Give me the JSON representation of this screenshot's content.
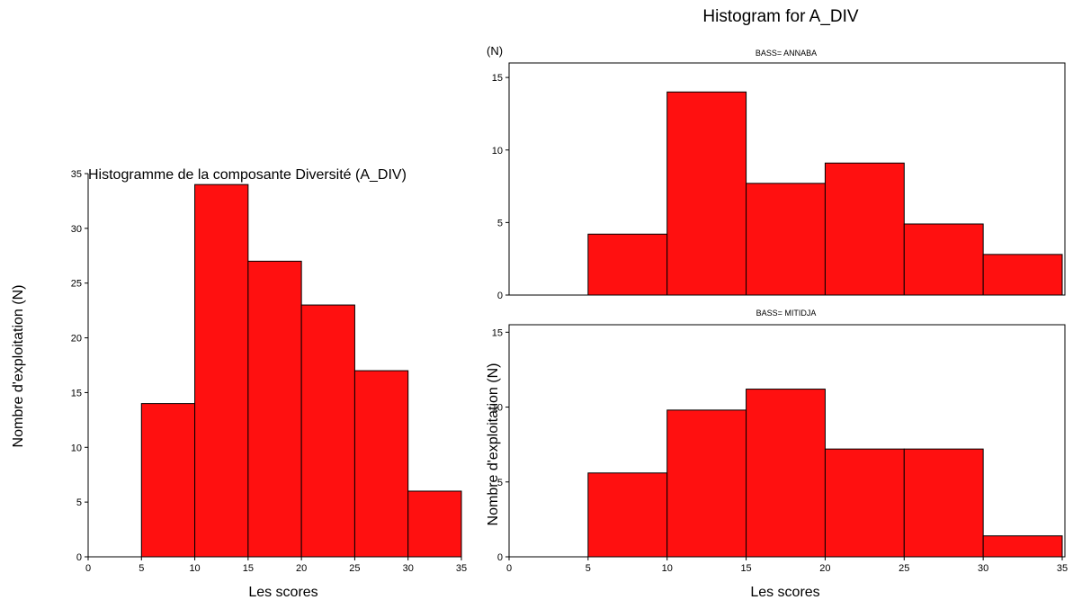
{
  "colors": {
    "bar": "#ff1010",
    "edge": "#000000"
  },
  "chart_data": [
    {
      "type": "bar",
      "title": "Histogramme de la composante Diversité (A_DIV)",
      "xlabel": "Les scores",
      "ylabel": "Nombre d'exploitation (N)",
      "bins": [
        [
          5,
          10
        ],
        [
          10,
          15
        ],
        [
          15,
          20
        ],
        [
          20,
          25
        ],
        [
          25,
          30
        ],
        [
          30,
          35
        ]
      ],
      "values": [
        14,
        34,
        27,
        23,
        17,
        6
      ],
      "xlim": [
        0,
        35
      ],
      "ylim": [
        0,
        35
      ],
      "xticks": [
        0,
        5,
        10,
        15,
        20,
        25,
        30,
        35
      ],
      "yticks": [
        0,
        5,
        10,
        15,
        20,
        25,
        30,
        35
      ]
    },
    {
      "type": "bar",
      "title": "Histogram for A_DIV",
      "panel": "BASS= ANNABA",
      "ylabel": "(N)",
      "bins": [
        [
          5,
          10
        ],
        [
          10,
          15
        ],
        [
          15,
          20
        ],
        [
          20,
          25
        ],
        [
          25,
          30
        ],
        [
          30,
          35
        ]
      ],
      "values": [
        4.2,
        14,
        7.7,
        9.1,
        4.9,
        2.8
      ],
      "xlim": [
        0,
        35
      ],
      "ylim": [
        0,
        16
      ],
      "yticks": [
        0,
        5,
        10,
        15
      ]
    },
    {
      "type": "bar",
      "panel": "BASS= MITIDJA",
      "xlabel": "Les scores",
      "ylabel": "Nombre d'exploitation (N)",
      "bins": [
        [
          5,
          10
        ],
        [
          10,
          15
        ],
        [
          15,
          20
        ],
        [
          20,
          25
        ],
        [
          25,
          30
        ],
        [
          30,
          35
        ]
      ],
      "values": [
        5.6,
        9.8,
        11.2,
        7.2,
        7.2,
        1.4
      ],
      "xlim": [
        0,
        35
      ],
      "ylim": [
        0,
        15.5
      ],
      "xticks": [
        0,
        5,
        10,
        15,
        20,
        25,
        30,
        35
      ],
      "yticks": [
        0,
        5,
        10,
        15
      ]
    }
  ]
}
